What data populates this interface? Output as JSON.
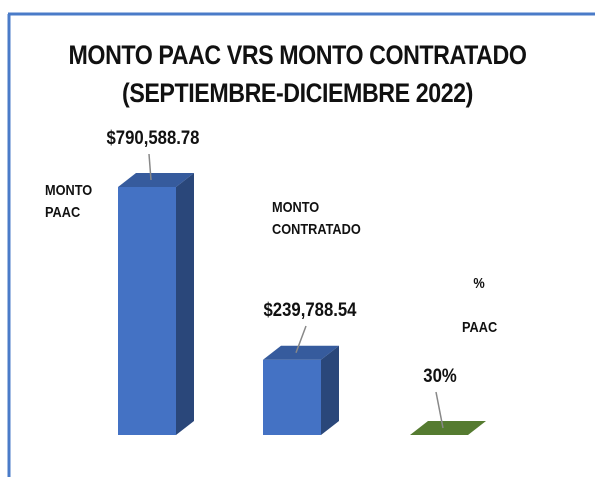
{
  "chart_data": {
    "type": "bar3d",
    "title": [
      "MONTO PAAC VRS MONTO CONTRATADO",
      "(SEPTIEMBRE-DICIEMBRE 2022)"
    ],
    "categories": [
      "MONTO PAAC",
      "MONTO CONTRATADO",
      "% PAAC"
    ],
    "values": [
      790588.78,
      239788.54,
      30
    ],
    "value_labels": [
      "$790,588.78",
      "$239,788.54",
      "30%"
    ],
    "colors": [
      "#4472c4",
      "#4472c4",
      "#6a9a3c"
    ]
  }
}
